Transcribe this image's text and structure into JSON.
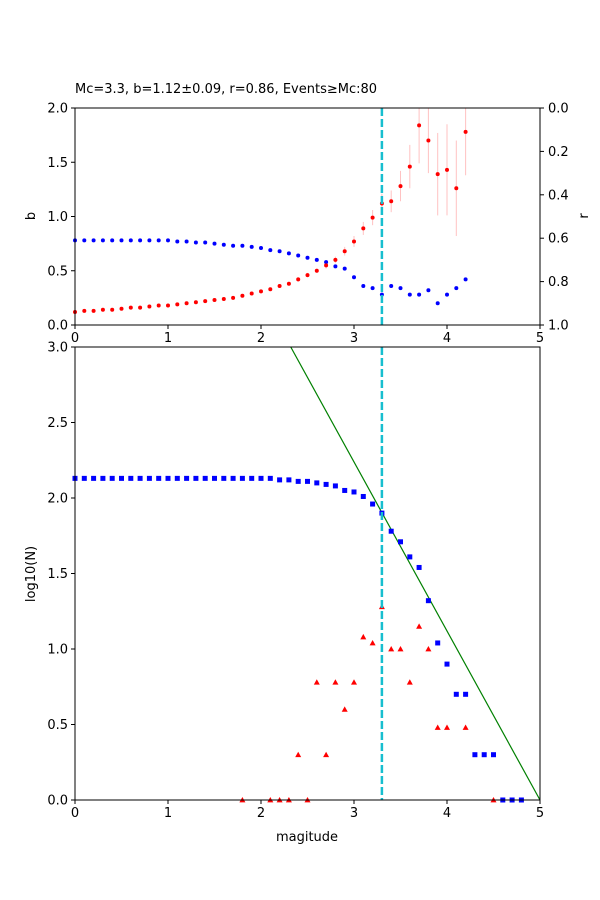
{
  "chart_data": [
    {
      "type": "scatter",
      "title": "Mc=3.3, b=1.12±0.09, r=0.86, Events≥Mc:80",
      "xlabel": "",
      "ylabel": "b",
      "ylabel_right": "r",
      "xlim": [
        0,
        5
      ],
      "ylim": [
        0,
        2
      ],
      "ylim_right": [
        1,
        0
      ],
      "x_ticks": [
        "0",
        "1",
        "2",
        "3",
        "4",
        "5"
      ],
      "y_ticks": [
        "0.0",
        "0.5",
        "1.0",
        "1.5",
        "2.0"
      ],
      "y_ticks_right": [
        "0.0",
        "0.2",
        "0.4",
        "0.6",
        "0.8",
        "1.0"
      ],
      "mc_line": 3.3,
      "mc_line_color": "#17becf",
      "series": [
        {
          "color": "#ff0000",
          "axis": "left",
          "x": [
            0.0,
            0.1,
            0.2,
            0.3,
            0.4,
            0.5,
            0.6,
            0.7,
            0.8,
            0.9,
            1.0,
            1.1,
            1.2,
            1.3,
            1.4,
            1.5,
            1.6,
            1.7,
            1.8,
            1.9,
            2.0,
            2.1,
            2.2,
            2.3,
            2.4,
            2.5,
            2.6,
            2.7,
            2.8,
            2.9,
            3.0,
            3.1,
            3.2,
            3.3,
            3.4,
            3.5,
            3.6,
            3.7,
            3.8,
            3.9,
            4.0,
            4.1,
            4.2
          ],
          "y": [
            0.12,
            0.13,
            0.13,
            0.14,
            0.14,
            0.15,
            0.16,
            0.16,
            0.17,
            0.18,
            0.18,
            0.19,
            0.2,
            0.21,
            0.22,
            0.23,
            0.24,
            0.25,
            0.27,
            0.29,
            0.31,
            0.33,
            0.36,
            0.38,
            0.42,
            0.46,
            0.5,
            0.55,
            0.6,
            0.68,
            0.77,
            0.89,
            0.99,
            1.12,
            1.14,
            1.28,
            1.46,
            1.84,
            1.7,
            1.39,
            1.43,
            1.26,
            1.78
          ],
          "err": [
            0.01,
            0.01,
            0.01,
            0.01,
            0.01,
            0.01,
            0.01,
            0.01,
            0.01,
            0.01,
            0.01,
            0.01,
            0.01,
            0.01,
            0.01,
            0.01,
            0.01,
            0.01,
            0.01,
            0.01,
            0.01,
            0.01,
            0.01,
            0.01,
            0.02,
            0.02,
            0.02,
            0.03,
            0.03,
            0.04,
            0.05,
            0.06,
            0.07,
            0.09,
            0.1,
            0.14,
            0.2,
            0.35,
            0.3,
            0.38,
            0.42,
            0.44,
            0.4
          ]
        },
        {
          "color": "#0000ff",
          "axis": "right",
          "x": [
            0.0,
            0.1,
            0.2,
            0.3,
            0.4,
            0.5,
            0.6,
            0.7,
            0.8,
            0.9,
            1.0,
            1.1,
            1.2,
            1.3,
            1.4,
            1.5,
            1.6,
            1.7,
            1.8,
            1.9,
            2.0,
            2.1,
            2.2,
            2.3,
            2.4,
            2.5,
            2.6,
            2.7,
            2.8,
            2.9,
            3.0,
            3.1,
            3.2,
            3.3,
            3.4,
            3.5,
            3.6,
            3.7,
            3.8,
            3.9,
            4.0,
            4.1,
            4.2
          ],
          "y": [
            0.61,
            0.61,
            0.61,
            0.61,
            0.61,
            0.61,
            0.61,
            0.61,
            0.61,
            0.61,
            0.61,
            0.615,
            0.615,
            0.62,
            0.62,
            0.625,
            0.63,
            0.635,
            0.635,
            0.64,
            0.645,
            0.655,
            0.66,
            0.67,
            0.68,
            0.69,
            0.7,
            0.71,
            0.73,
            0.74,
            0.78,
            0.82,
            0.83,
            0.86,
            0.82,
            0.83,
            0.86,
            0.86,
            0.84,
            0.9,
            0.86,
            0.83,
            0.79
          ]
        }
      ]
    },
    {
      "type": "scatter",
      "title": "",
      "xlabel": "magitude",
      "ylabel": "log10(N)",
      "xlim": [
        0,
        5
      ],
      "ylim": [
        0,
        3
      ],
      "x_ticks": [
        "0",
        "1",
        "2",
        "3",
        "4",
        "5"
      ],
      "y_ticks": [
        "0.0",
        "0.5",
        "1.0",
        "1.5",
        "2.0",
        "2.5",
        "3.0"
      ],
      "mc_line": 3.3,
      "mc_line_color": "#17becf",
      "fit_line": {
        "x": [
          2.32,
          5.0
        ],
        "y": [
          3.0,
          0.0
        ],
        "color": "#008000"
      },
      "series": [
        {
          "marker": "square",
          "color": "#0000ff",
          "x": [
            0.0,
            0.1,
            0.2,
            0.3,
            0.4,
            0.5,
            0.6,
            0.7,
            0.8,
            0.9,
            1.0,
            1.1,
            1.2,
            1.3,
            1.4,
            1.5,
            1.6,
            1.7,
            1.8,
            1.9,
            2.0,
            2.1,
            2.2,
            2.3,
            2.4,
            2.5,
            2.6,
            2.7,
            2.8,
            2.9,
            3.0,
            3.1,
            3.2,
            3.3,
            3.4,
            3.5,
            3.6,
            3.7,
            3.8,
            3.9,
            4.0,
            4.1,
            4.2,
            4.3,
            4.4,
            4.5,
            4.6,
            4.7,
            4.8
          ],
          "y": [
            2.13,
            2.13,
            2.13,
            2.13,
            2.13,
            2.13,
            2.13,
            2.13,
            2.13,
            2.13,
            2.13,
            2.13,
            2.13,
            2.13,
            2.13,
            2.13,
            2.13,
            2.13,
            2.13,
            2.13,
            2.13,
            2.13,
            2.12,
            2.12,
            2.11,
            2.11,
            2.1,
            2.09,
            2.08,
            2.05,
            2.04,
            2.01,
            1.96,
            1.9,
            1.78,
            1.71,
            1.61,
            1.54,
            1.32,
            1.04,
            0.9,
            0.7,
            0.7,
            0.3,
            0.3,
            0.3,
            0.0,
            0.0,
            0.0
          ]
        },
        {
          "marker": "triangle",
          "color": "#ff0000",
          "x": [
            1.8,
            2.1,
            2.2,
            2.3,
            2.4,
            2.5,
            2.6,
            2.7,
            2.8,
            2.9,
            3.0,
            3.1,
            3.2,
            3.3,
            3.4,
            3.5,
            3.6,
            3.7,
            3.8,
            3.9,
            4.0,
            4.2,
            4.5
          ],
          "y": [
            0.0,
            0.0,
            0.0,
            0.0,
            0.3,
            0.0,
            0.78,
            0.3,
            0.78,
            0.6,
            0.78,
            1.08,
            1.04,
            1.28,
            1.0,
            1.0,
            0.78,
            1.15,
            1.0,
            0.48,
            0.48,
            0.48,
            0.0
          ]
        }
      ]
    }
  ]
}
